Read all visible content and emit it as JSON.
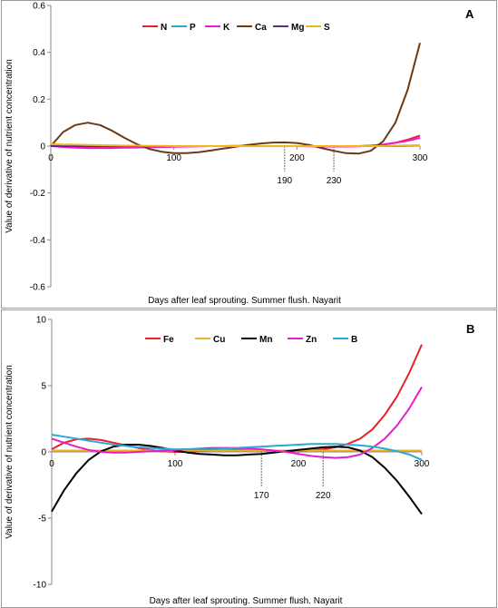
{
  "chart_data": [
    {
      "type": "line",
      "panel_label": "A",
      "xlabel": "Days after leaf sprouting. Summer flush. Nayarit",
      "ylabel": "Value of derivative of nutrient concentration",
      "xlim": [
        0,
        300
      ],
      "ylim": [
        -0.6,
        0.6
      ],
      "x_ticks": [
        "0",
        "100",
        "200",
        "300"
      ],
      "y_ticks": [
        "0.6",
        "0.4",
        "0.2",
        "0",
        "-0.2",
        "-0.4",
        "-0.6"
      ],
      "legend_position": "top",
      "annotations": [
        "190",
        "230"
      ],
      "x": [
        0,
        10,
        20,
        30,
        40,
        50,
        60,
        70,
        80,
        90,
        100,
        110,
        120,
        130,
        140,
        150,
        160,
        170,
        180,
        190,
        200,
        210,
        220,
        230,
        240,
        250,
        260,
        270,
        280,
        290,
        300
      ],
      "series": [
        {
          "name": "N",
          "color": "#e8202a",
          "values": [
            0.003,
            0.0,
            -0.002,
            -0.003,
            -0.004,
            -0.004,
            -0.004,
            -0.004,
            -0.003,
            -0.003,
            -0.002,
            -0.001,
            0.0,
            0.0,
            0.0,
            0.0,
            0.0,
            0.0,
            0.0,
            0.0,
            0.0,
            0.0,
            -0.001,
            -0.001,
            -0.001,
            0.0,
            0.002,
            0.006,
            0.014,
            0.027,
            0.045
          ]
        },
        {
          "name": "P",
          "color": "#29a9d6",
          "values": [
            0.0,
            0.0,
            0.0,
            0.0,
            0.0,
            0.0,
            0.0,
            0.0,
            0.0,
            0.0,
            0.0,
            0.0,
            0.0,
            0.0,
            0.0,
            0.0,
            0.0,
            0.0,
            0.0,
            0.0,
            0.0,
            0.0,
            0.0,
            0.0,
            0.0,
            0.0,
            0.0,
            0.0,
            0.001,
            0.002,
            0.003
          ]
        },
        {
          "name": "K",
          "color": "#e81ccf",
          "values": [
            0.0,
            -0.004,
            -0.007,
            -0.008,
            -0.008,
            -0.008,
            -0.007,
            -0.006,
            -0.005,
            -0.004,
            -0.003,
            -0.002,
            -0.001,
            0.0,
            0.0,
            0.001,
            0.001,
            0.0,
            0.0,
            0.0,
            0.0,
            -0.001,
            -0.002,
            -0.002,
            -0.002,
            -0.001,
            0.002,
            0.007,
            0.014,
            0.023,
            0.035
          ]
        },
        {
          "name": "Ca",
          "color": "#6b3a14",
          "values": [
            0.0,
            0.06,
            0.09,
            0.1,
            0.09,
            0.065,
            0.035,
            0.008,
            -0.012,
            -0.024,
            -0.03,
            -0.03,
            -0.026,
            -0.019,
            -0.011,
            -0.003,
            0.005,
            0.011,
            0.015,
            0.016,
            0.013,
            0.005,
            -0.008,
            -0.02,
            -0.03,
            -0.032,
            -0.02,
            0.02,
            0.1,
            0.24,
            0.44
          ]
        },
        {
          "name": "Mg",
          "color": "#5d2a8c",
          "values": [
            0.0,
            0.0,
            0.0,
            0.0,
            0.0,
            0.0,
            0.0,
            0.0,
            0.0,
            0.0,
            0.0,
            0.0,
            0.0,
            0.0,
            0.0,
            0.0,
            0.0,
            0.0,
            0.0,
            0.0,
            0.0,
            0.0,
            0.0,
            0.0,
            0.0,
            0.0,
            0.0,
            0.0,
            0.0,
            0.001,
            0.002
          ]
        },
        {
          "name": "S",
          "color": "#f2b31c",
          "values": [
            0.008,
            0.007,
            0.006,
            0.005,
            0.004,
            0.003,
            0.002,
            0.002,
            0.001,
            0.001,
            0.0,
            0.0,
            0.0,
            0.0,
            0.0,
            0.0,
            0.0,
            0.0,
            0.0,
            0.0,
            0.0,
            0.0,
            0.0,
            0.0,
            0.0,
            0.0,
            0.0,
            0.0,
            0.001,
            0.001,
            0.002
          ]
        }
      ]
    },
    {
      "type": "line",
      "panel_label": "B",
      "xlabel": "Days after leaf sprouting. Summer flush. Nayarit",
      "ylabel": "Value of derivative of nutrient concentration",
      "xlim": [
        0,
        300
      ],
      "ylim": [
        -10,
        10
      ],
      "x_ticks": [
        "0",
        "100",
        "200",
        "300"
      ],
      "y_ticks": [
        "10",
        "5",
        "0",
        "-5",
        "-10"
      ],
      "legend_position": "top",
      "annotations": [
        "170",
        "220"
      ],
      "x": [
        0,
        10,
        20,
        30,
        40,
        50,
        60,
        70,
        80,
        90,
        100,
        110,
        120,
        130,
        140,
        150,
        160,
        170,
        180,
        190,
        200,
        210,
        220,
        230,
        240,
        250,
        260,
        270,
        280,
        290,
        300
      ],
      "series": [
        {
          "name": "Fe",
          "color": "#e8202a",
          "values": [
            0.2,
            0.7,
            0.95,
            1.0,
            0.9,
            0.7,
            0.5,
            0.3,
            0.15,
            0.05,
            0.0,
            0.0,
            0.05,
            0.1,
            0.15,
            0.2,
            0.2,
            0.15,
            0.1,
            0.05,
            0.05,
            0.1,
            0.2,
            0.35,
            0.6,
            1.0,
            1.7,
            2.8,
            4.2,
            6.0,
            8.1
          ]
        },
        {
          "name": "Cu",
          "color": "#f2b31c",
          "values": [
            0.1,
            0.1,
            0.1,
            0.1,
            0.1,
            0.1,
            0.1,
            0.1,
            0.1,
            0.1,
            0.1,
            0.1,
            0.1,
            0.1,
            0.1,
            0.1,
            0.1,
            0.1,
            0.1,
            0.1,
            0.1,
            0.1,
            0.1,
            0.1,
            0.1,
            0.1,
            0.1,
            0.1,
            0.1,
            0.1,
            0.1
          ]
        },
        {
          "name": "Mn",
          "color": "#000000",
          "values": [
            -4.5,
            -2.9,
            -1.6,
            -0.6,
            0.05,
            0.4,
            0.55,
            0.55,
            0.45,
            0.3,
            0.1,
            -0.05,
            -0.15,
            -0.2,
            -0.25,
            -0.25,
            -0.2,
            -0.15,
            -0.05,
            0.05,
            0.15,
            0.25,
            0.35,
            0.4,
            0.35,
            0.1,
            -0.4,
            -1.2,
            -2.2,
            -3.4,
            -4.7
          ]
        },
        {
          "name": "Zn",
          "color": "#e81ccf",
          "values": [
            1.0,
            0.7,
            0.4,
            0.15,
            0.0,
            -0.05,
            -0.05,
            0.0,
            0.05,
            0.1,
            0.15,
            0.2,
            0.25,
            0.3,
            0.3,
            0.3,
            0.25,
            0.2,
            0.1,
            0.0,
            -0.15,
            -0.3,
            -0.4,
            -0.45,
            -0.4,
            -0.2,
            0.3,
            1.0,
            2.0,
            3.3,
            4.9
          ]
        },
        {
          "name": "B",
          "color": "#29a9d6",
          "values": [
            1.3,
            1.15,
            1.0,
            0.85,
            0.7,
            0.55,
            0.45,
            0.35,
            0.3,
            0.25,
            0.2,
            0.2,
            0.2,
            0.2,
            0.25,
            0.3,
            0.35,
            0.4,
            0.45,
            0.5,
            0.55,
            0.6,
            0.6,
            0.6,
            0.55,
            0.5,
            0.4,
            0.25,
            0.05,
            -0.2,
            -0.6
          ]
        }
      ]
    }
  ]
}
